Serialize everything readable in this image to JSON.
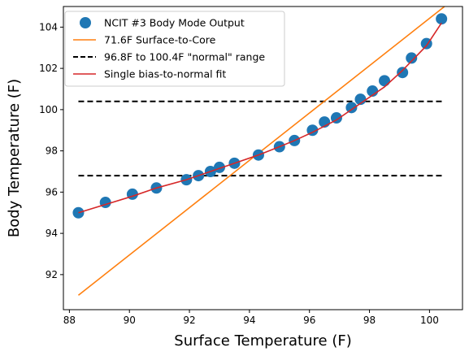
{
  "chart_data": {
    "type": "line",
    "xlabel": "Surface Temperature (F)",
    "ylabel": "Body Temperature (F)",
    "xlim": [
      87.8,
      101.1
    ],
    "ylim": [
      90.3,
      105.0
    ],
    "x_ticks": [
      88,
      90,
      92,
      94,
      96,
      98,
      100
    ],
    "y_ticks": [
      92,
      94,
      96,
      98,
      100,
      102,
      104
    ],
    "grid": false,
    "legend_position": "top-left",
    "series": [
      {
        "name": "NCIT #3 Body Mode Output",
        "kind": "scatter",
        "color": "#1f77b4",
        "points": [
          [
            88.3,
            95.0
          ],
          [
            89.2,
            95.5
          ],
          [
            90.1,
            95.9
          ],
          [
            90.9,
            96.2
          ],
          [
            91.9,
            96.6
          ],
          [
            92.3,
            96.8
          ],
          [
            92.7,
            97.0
          ],
          [
            93.0,
            97.2
          ],
          [
            93.5,
            97.4
          ],
          [
            94.3,
            97.8
          ],
          [
            95.0,
            98.2
          ],
          [
            95.5,
            98.5
          ],
          [
            96.1,
            99.0
          ],
          [
            96.5,
            99.4
          ],
          [
            96.9,
            99.6
          ],
          [
            97.4,
            100.1
          ],
          [
            97.7,
            100.5
          ],
          [
            98.1,
            100.9
          ],
          [
            98.5,
            101.4
          ],
          [
            99.1,
            101.8
          ],
          [
            99.4,
            102.5
          ],
          [
            99.9,
            103.2
          ],
          [
            100.4,
            104.4
          ]
        ]
      },
      {
        "name": "71.6F Surface-to-Core",
        "kind": "line",
        "color": "#ff7f0e",
        "points": [
          [
            88.3,
            91.0
          ],
          [
            100.5,
            105.0
          ]
        ]
      },
      {
        "name": "96.8F to 100.4F \"normal\" range",
        "kind": "dashed-hlines",
        "color": "#000000",
        "x_range": [
          88.3,
          100.5
        ],
        "y_values": [
          96.8,
          100.4
        ]
      },
      {
        "name": "Single bias-to-normal fit",
        "kind": "line",
        "color": "#d62728",
        "points": [
          [
            88.3,
            95.0
          ],
          [
            89.2,
            95.4
          ],
          [
            90.1,
            95.8
          ],
          [
            90.9,
            96.2
          ],
          [
            91.9,
            96.6
          ],
          [
            92.7,
            97.0
          ],
          [
            93.5,
            97.4
          ],
          [
            94.3,
            97.8
          ],
          [
            95.0,
            98.2
          ],
          [
            95.5,
            98.5
          ],
          [
            96.1,
            98.9
          ],
          [
            96.9,
            99.5
          ],
          [
            97.7,
            100.3
          ],
          [
            98.5,
            101.1
          ],
          [
            99.1,
            101.9
          ],
          [
            99.9,
            103.1
          ],
          [
            100.4,
            104.2
          ]
        ]
      }
    ]
  }
}
